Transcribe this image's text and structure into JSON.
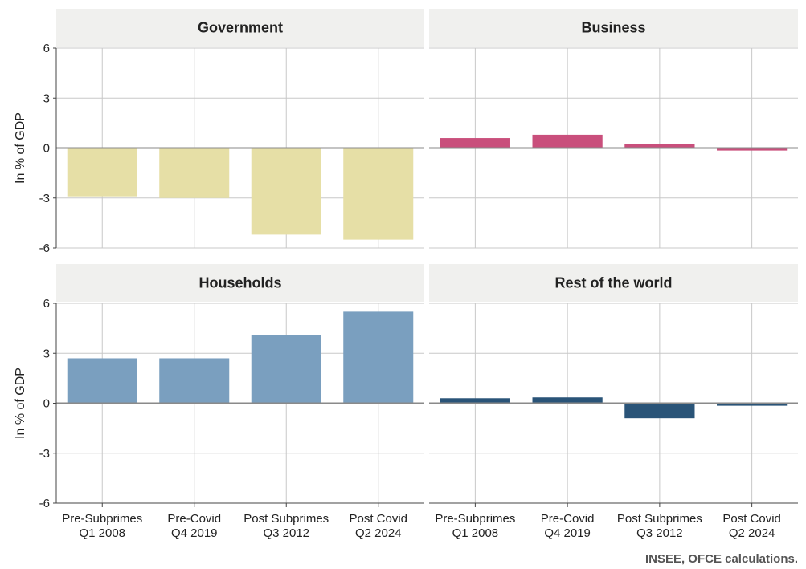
{
  "chart_data": {
    "type": "bar",
    "ylabel": "In % of GDP",
    "ylim": [
      -6,
      6
    ],
    "yticks": [
      -6,
      -3,
      0,
      3,
      6
    ],
    "grid": true,
    "categories": [
      [
        "Pre-Subprimes",
        "Q1 2008"
      ],
      [
        "Pre-Covid",
        "Q4 2019"
      ],
      [
        "Post Subprimes",
        "Q3 2012"
      ],
      [
        "Post Covid",
        "Q2 2024"
      ]
    ],
    "panels": [
      {
        "title": "Government",
        "color": "#e6dfa6",
        "values": [
          -2.9,
          -3.0,
          -5.2,
          -5.5
        ]
      },
      {
        "title": "Business",
        "color": "#c94f7c",
        "values": [
          0.6,
          0.8,
          0.25,
          -0.15
        ]
      },
      {
        "title": "Households",
        "color": "#7a9fbf",
        "values": [
          2.7,
          2.7,
          4.1,
          5.5
        ]
      },
      {
        "title": "Rest of the world",
        "color": "#2a5478",
        "values": [
          0.3,
          0.35,
          -0.9,
          -0.15
        ]
      }
    ],
    "source": "INSEE, OFCE calculations."
  }
}
